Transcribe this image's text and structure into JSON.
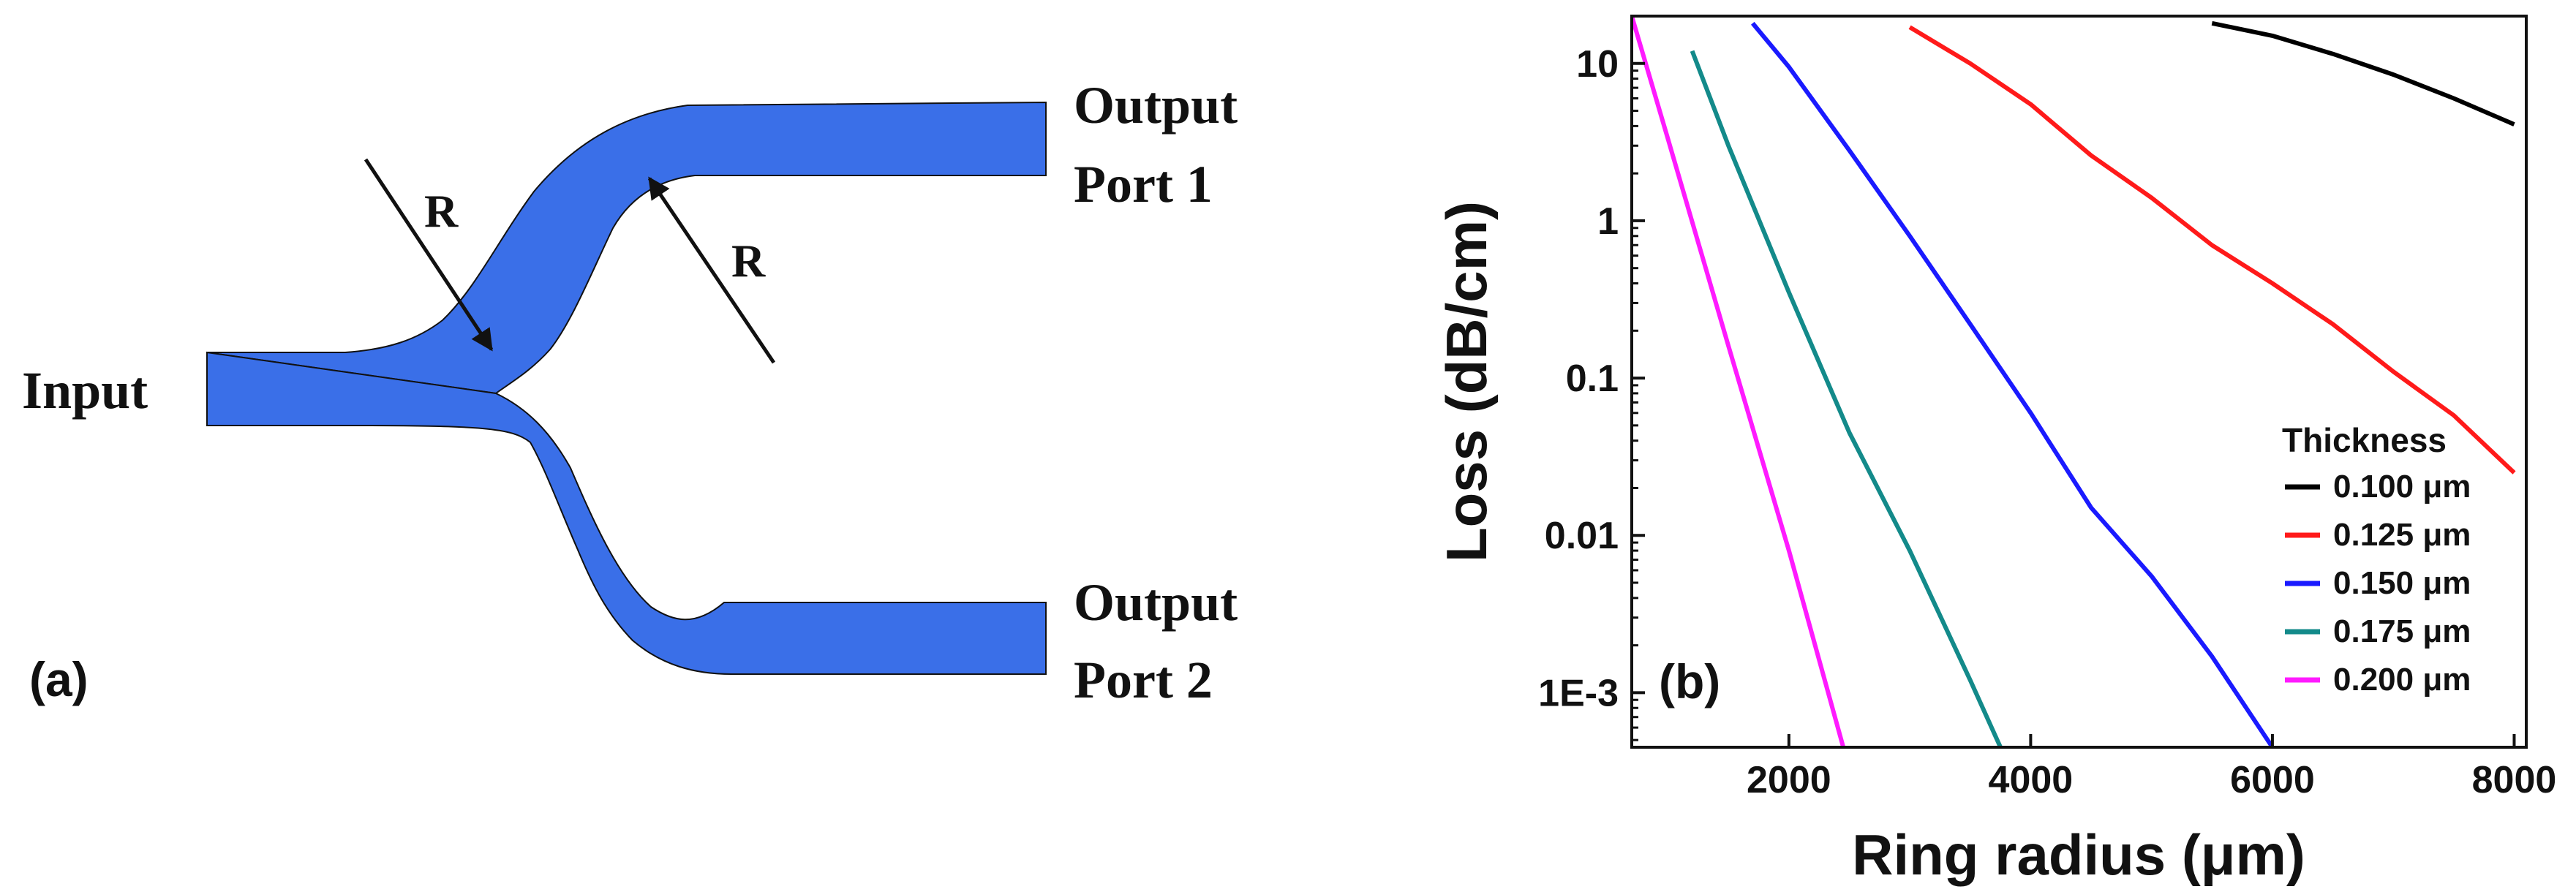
{
  "panel_a": {
    "label": "(a)",
    "input_label": "Input",
    "output1_line1": "Output",
    "output1_line2": "Port 1",
    "output2_line1": "Output",
    "output2_line2": "Port 2",
    "radius_label_left": "R",
    "radius_label_right": "R",
    "waveguide_color": "#3a6fe8"
  },
  "chart_data": {
    "type": "line",
    "panel_label": "(b)",
    "xlabel": "Ring radius (μm)",
    "ylabel": "Loss (dB/cm)",
    "x_scale": "linear",
    "y_scale": "log",
    "xlim": [
      700,
      8100
    ],
    "ylim": [
      0.00045,
      20
    ],
    "x_ticks": [
      2000,
      4000,
      6000,
      8000
    ],
    "x_tick_labels": [
      "2000",
      "4000",
      "6000",
      "8000"
    ],
    "y_ticks": [
      0.001,
      0.01,
      0.1,
      1,
      10
    ],
    "y_tick_labels": [
      "1E-3",
      "0.01",
      "0.1",
      "1",
      "10"
    ],
    "grid": false,
    "legend_title": "Thickness",
    "legend_position": "bottom-right",
    "series": [
      {
        "name": "0.100 μm",
        "color": "#000000",
        "x": [
          5500,
          6000,
          6500,
          7000,
          7500,
          8000
        ],
        "y": [
          18,
          15,
          11.5,
          8.5,
          6,
          4.1
        ]
      },
      {
        "name": "0.125 μm",
        "color": "#ff1a1a",
        "x": [
          3000,
          3500,
          4000,
          4500,
          5000,
          5500,
          6000,
          6500,
          7000,
          7500,
          8000
        ],
        "y": [
          17,
          10,
          5.5,
          2.6,
          1.4,
          0.7,
          0.4,
          0.22,
          0.11,
          0.058,
          0.025
        ]
      },
      {
        "name": "0.150 μm",
        "color": "#1a1aff",
        "x": [
          1700,
          2000,
          2500,
          3000,
          3500,
          4000,
          4500,
          5000,
          5500,
          6000
        ],
        "y": [
          18,
          9.5,
          2.8,
          0.8,
          0.22,
          0.06,
          0.015,
          0.0055,
          0.0017,
          0.00045
        ]
      },
      {
        "name": "0.175 μm",
        "color": "#138a8a",
        "x": [
          1200,
          1500,
          2000,
          2500,
          3000,
          3500,
          3750
        ],
        "y": [
          12,
          3,
          0.35,
          0.045,
          0.008,
          0.0012,
          0.00045
        ]
      },
      {
        "name": "0.200 μm",
        "color": "#ff1aff",
        "x": [
          700,
          1000,
          1500,
          2000,
          2450
        ],
        "y": [
          20,
          3.3,
          0.16,
          0.008,
          0.00045
        ]
      }
    ]
  }
}
